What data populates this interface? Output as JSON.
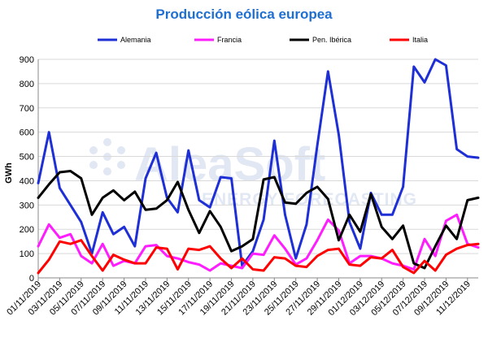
{
  "chart_data": {
    "type": "line",
    "title": "Producción eólica europea",
    "ylabel": "GWh",
    "xlabel": "",
    "ylim": [
      0,
      900
    ],
    "yticks": [
      0,
      100,
      200,
      300,
      400,
      500,
      600,
      700,
      800,
      900
    ],
    "legend_position": "top",
    "grid": true,
    "x_dates": [
      "01/11/2019",
      "02/11/2019",
      "03/11/2019",
      "04/11/2019",
      "05/11/2019",
      "06/11/2019",
      "07/11/2019",
      "08/11/2019",
      "09/11/2019",
      "10/11/2019",
      "11/11/2019",
      "12/11/2019",
      "13/11/2019",
      "14/11/2019",
      "15/11/2019",
      "16/11/2019",
      "17/11/2019",
      "18/11/2019",
      "19/11/2019",
      "20/11/2019",
      "21/11/2019",
      "22/11/2019",
      "23/11/2019",
      "24/11/2019",
      "25/11/2019",
      "26/11/2019",
      "27/11/2019",
      "28/11/2019",
      "29/11/2019",
      "30/11/2019",
      "01/12/2019",
      "02/12/2019",
      "03/12/2019",
      "04/12/2019",
      "05/12/2019",
      "06/12/2019",
      "07/12/2019",
      "08/12/2019",
      "09/12/2019",
      "10/12/2019",
      "11/12/2019",
      "12/12/2019"
    ],
    "x_tick_labels": [
      "01/11/2019",
      "03/11/2019",
      "05/11/2019",
      "07/11/2019",
      "09/11/2019",
      "11/11/2019",
      "13/11/2019",
      "15/11/2019",
      "17/11/2019",
      "19/11/2019",
      "21/11/2019",
      "23/11/2019",
      "25/11/2019",
      "27/11/2019",
      "29/11/2019",
      "01/12/2019",
      "03/12/2019",
      "05/12/2019",
      "07/12/2019",
      "09/12/2019",
      "11/12/2019"
    ],
    "series": [
      {
        "name": "Alemania",
        "color": "#1f2fd6",
        "values": [
          390,
          600,
          370,
          300,
          230,
          100,
          270,
          180,
          210,
          130,
          410,
          515,
          330,
          270,
          525,
          320,
          290,
          415,
          410,
          50,
          110,
          240,
          565,
          260,
          80,
          220,
          545,
          850,
          590,
          230,
          120,
          350,
          260,
          260,
          375,
          870,
          805,
          910,
          875,
          530,
          500,
          495
        ]
      },
      {
        "name": "Francia",
        "color": "#ff1dff",
        "values": [
          130,
          220,
          165,
          180,
          90,
          60,
          140,
          50,
          70,
          60,
          130,
          135,
          90,
          80,
          65,
          55,
          30,
          60,
          50,
          40,
          100,
          95,
          175,
          120,
          55,
          80,
          155,
          240,
          195,
          60,
          90,
          90,
          80,
          60,
          50,
          35,
          160,
          90,
          235,
          260,
          140,
          125
        ]
      },
      {
        "name": "Pen. Ibérica",
        "color": "#000000",
        "values": [
          330,
          385,
          435,
          440,
          410,
          260,
          330,
          360,
          320,
          355,
          280,
          285,
          320,
          395,
          280,
          185,
          275,
          210,
          110,
          130,
          160,
          405,
          415,
          310,
          305,
          350,
          375,
          325,
          155,
          260,
          190,
          345,
          210,
          160,
          215,
          60,
          40,
          130,
          215,
          160,
          320,
          330
        ]
      },
      {
        "name": "Italia",
        "color": "#ff0000",
        "values": [
          20,
          75,
          150,
          140,
          155,
          90,
          30,
          95,
          75,
          60,
          60,
          125,
          120,
          35,
          120,
          115,
          130,
          80,
          40,
          80,
          35,
          30,
          85,
          80,
          50,
          45,
          90,
          115,
          120,
          55,
          50,
          85,
          80,
          115,
          45,
          20,
          70,
          30,
          95,
          120,
          135,
          140
        ]
      }
    ]
  }
}
